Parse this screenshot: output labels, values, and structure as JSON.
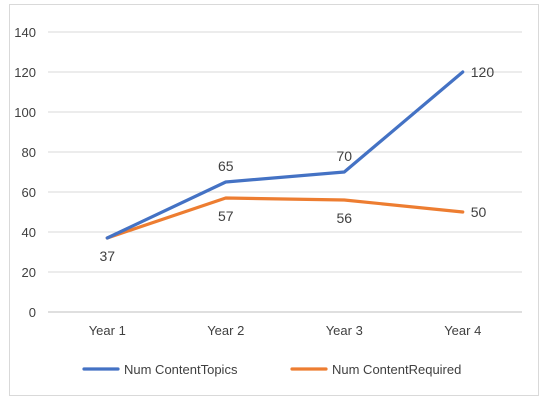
{
  "chart_data": {
    "type": "line",
    "title": "",
    "xlabel": "",
    "ylabel": "",
    "categories": [
      "Year 1",
      "Year 2",
      "Year 3",
      "Year 4"
    ],
    "ylim": [
      0,
      140
    ],
    "yticks": [
      0,
      20,
      40,
      60,
      80,
      100,
      120,
      140
    ],
    "grid": true,
    "legend_position": "bottom",
    "series": [
      {
        "name": "Num ContentTopics",
        "color": "#4472C4",
        "values": [
          37,
          65,
          70,
          120
        ],
        "labels": [
          "37",
          "65",
          "70",
          "120"
        ],
        "label_side": [
          "below",
          "above",
          "above",
          "right"
        ]
      },
      {
        "name": "Num ContentRequired",
        "color": "#ED7D31",
        "values": [
          37,
          57,
          56,
          50
        ],
        "labels": [
          "",
          "57",
          "56",
          "50"
        ],
        "label_side": [
          "none",
          "below",
          "below",
          "right"
        ]
      }
    ]
  }
}
